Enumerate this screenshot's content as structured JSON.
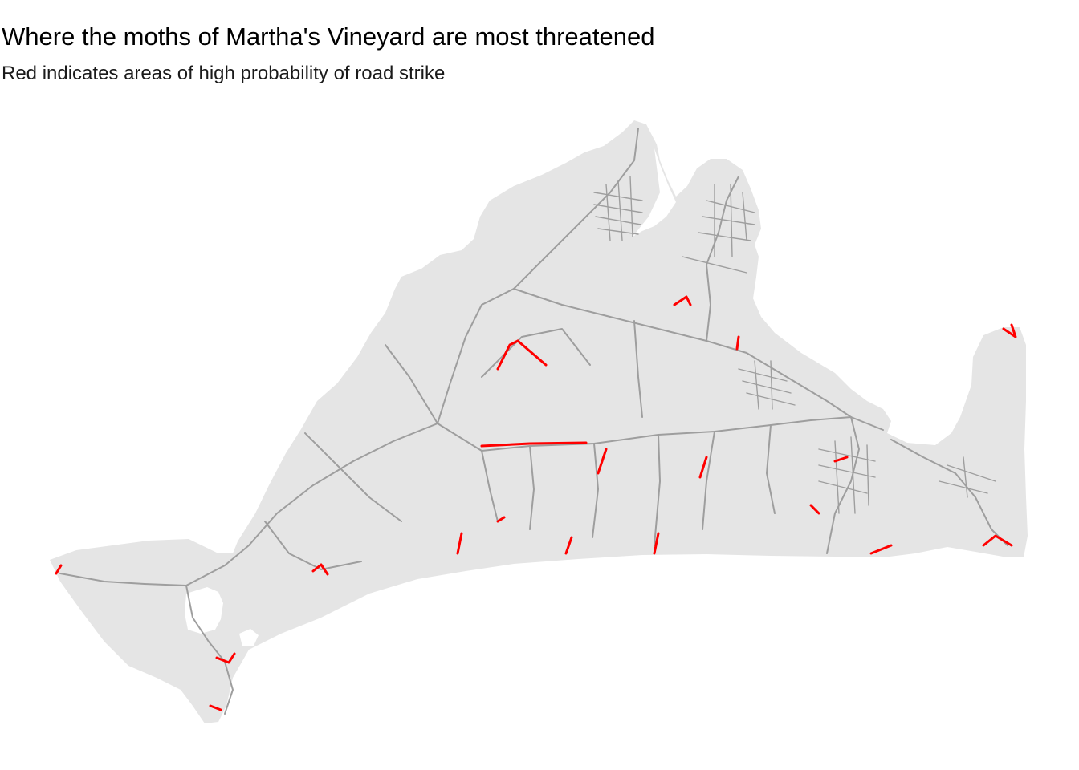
{
  "title": "Where the moths of Martha's Vineyard are most threatened",
  "subtitle": "Red indicates areas of high probability of road strike",
  "colors": {
    "background": "#ffffff",
    "land": "#e5e5e5",
    "road": "#9e9e9e",
    "high_risk_road": "#ff0000"
  },
  "map": {
    "region": "Martha's Vineyard",
    "layers": [
      "land",
      "roads",
      "high-risk-roads"
    ],
    "legend": "none"
  }
}
